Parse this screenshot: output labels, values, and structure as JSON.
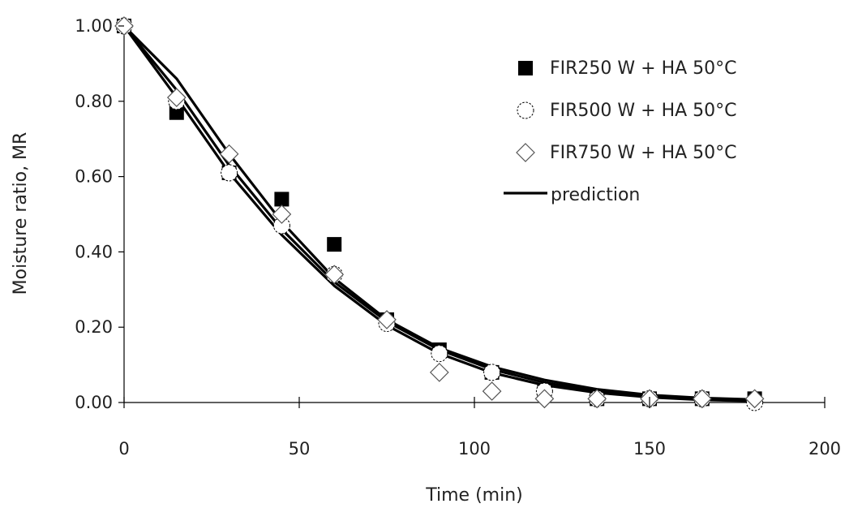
{
  "chart_data": {
    "type": "scatter",
    "title": "",
    "xlabel": "Time (min)",
    "ylabel": "Moisture ratio, MR",
    "xlim": [
      0,
      200
    ],
    "ylim": [
      0,
      1.0
    ],
    "x_ticks": [
      "0",
      "50",
      "100",
      "150",
      "200"
    ],
    "y_ticks": [
      "0.00",
      "0.20",
      "0.40",
      "0.60",
      "0.80",
      "1.00"
    ],
    "grid": false,
    "legend_position": "top-right",
    "series": [
      {
        "name": "FIR250 W + HA 50°C",
        "marker": "square",
        "x": [
          0,
          15,
          30,
          45,
          60,
          75,
          90,
          105,
          120,
          135,
          150,
          165,
          180
        ],
        "y": [
          1.0,
          0.77,
          0.61,
          0.54,
          0.42,
          0.22,
          0.14,
          0.08,
          0.03,
          0.01,
          0.01,
          0.01,
          0.01
        ]
      },
      {
        "name": "FIR500 W + HA 50°C",
        "marker": "circle",
        "x": [
          0,
          15,
          30,
          45,
          60,
          75,
          90,
          105,
          120,
          135,
          150,
          165,
          180
        ],
        "y": [
          1.0,
          0.8,
          0.61,
          0.47,
          0.34,
          0.21,
          0.13,
          0.08,
          0.03,
          0.01,
          0.01,
          0.01,
          0.0
        ]
      },
      {
        "name": "FIR750 W + HA 50°C",
        "marker": "diamond",
        "x": [
          0,
          15,
          30,
          45,
          60,
          75,
          90,
          105,
          120,
          135,
          150,
          165,
          180
        ],
        "y": [
          1.0,
          0.81,
          0.66,
          0.5,
          0.34,
          0.22,
          0.08,
          0.03,
          0.01,
          0.01,
          0.01,
          0.01,
          0.01
        ]
      },
      {
        "name": "prediction",
        "marker": "line",
        "lines": [
          {
            "x": [
              0,
              15,
              30,
              45,
              60,
              75,
              90,
              105,
              120,
              135,
              150,
              165,
              180
            ],
            "y": [
              1.0,
              0.86,
              0.66,
              0.48,
              0.33,
              0.22,
              0.145,
              0.095,
              0.06,
              0.035,
              0.02,
              0.012,
              0.008
            ]
          },
          {
            "x": [
              0,
              15,
              30,
              45,
              60,
              75,
              90,
              105,
              120,
              135,
              150,
              165,
              180
            ],
            "y": [
              1.0,
              0.83,
              0.63,
              0.46,
              0.32,
              0.215,
              0.14,
              0.088,
              0.053,
              0.03,
              0.017,
              0.009,
              0.005
            ]
          },
          {
            "x": [
              0,
              15,
              30,
              45,
              60,
              75,
              90,
              105,
              120,
              135,
              150,
              165,
              180
            ],
            "y": [
              1.0,
              0.81,
              0.61,
              0.445,
              0.31,
              0.205,
              0.13,
              0.079,
              0.046,
              0.026,
              0.014,
              0.007,
              0.004
            ]
          }
        ]
      }
    ]
  }
}
